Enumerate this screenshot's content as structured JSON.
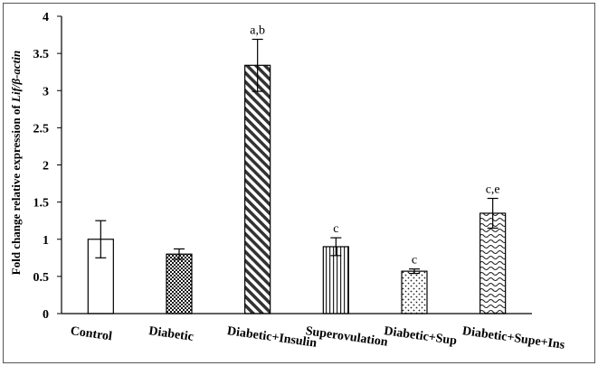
{
  "chart_data": {
    "type": "bar",
    "ylabel_prefix": "Fold change relative expression of ",
    "ylabel_gene": "Lif/β-actin",
    "ylim": [
      0,
      4
    ],
    "yticks": [
      "0",
      "0.5",
      "1",
      "1.5",
      "2",
      "2.5",
      "3",
      "3.5",
      "4"
    ],
    "grid": false,
    "categories": [
      "Control",
      "Diabetic",
      "Diabetic+Insulin",
      "Superovulation",
      "Diabetic+Sup",
      "Diabetic+Supe+Ins"
    ],
    "values": [
      1.0,
      0.8,
      3.34,
      0.9,
      0.57,
      1.35
    ],
    "errors": [
      0.25,
      0.07,
      0.35,
      0.12,
      0.03,
      0.2
    ],
    "annotations": [
      "",
      "",
      "a,b",
      "c",
      "c",
      "c,e"
    ],
    "patterns": [
      "none",
      "dots-dense",
      "diagonal-stripes",
      "vertical-stripes",
      "dots-sparse",
      "waves"
    ]
  }
}
